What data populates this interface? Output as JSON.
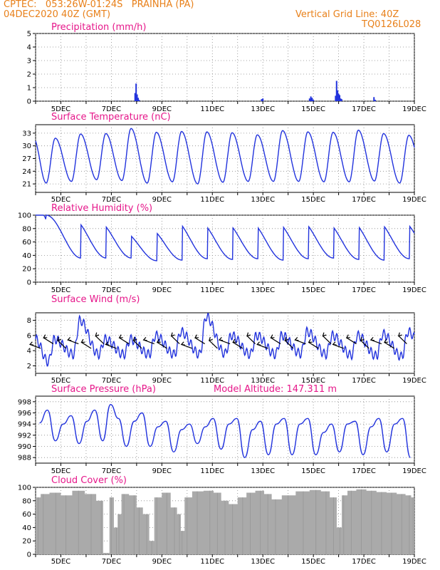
{
  "header": {
    "line1": "CPTEC:   053:26W-01:24S   PRAINHA (PA)",
    "line2": "04DEC2020 40Z (GMT)",
    "right1": "Vertical Grid Line: 40Z",
    "right2": "TQ0126L028"
  },
  "colors": {
    "header": "#e8801a",
    "title": "#e6178a",
    "line": "#2233dd",
    "cloud": "#aaaaaa"
  },
  "chart_data": [
    {
      "type": "bar",
      "title": "Precipitation (mm/h)",
      "x_range": [
        0,
        15
      ],
      "x_ticks": [
        "5DEC",
        "7DEC",
        "9DEC",
        "11DEC",
        "13DEC",
        "15DEC",
        "17DEC",
        "19DEC"
      ],
      "ylim": [
        0,
        5
      ],
      "y_ticks": [
        0,
        1,
        2,
        3,
        4,
        5
      ],
      "grid": true,
      "points": [
        [
          3.94,
          0.6
        ],
        [
          3.98,
          1.3
        ],
        [
          4.02,
          0.5
        ],
        [
          4.06,
          0.25
        ],
        [
          4.1,
          0.1
        ],
        [
          8.95,
          0.15
        ],
        [
          9.0,
          0.2
        ],
        [
          10.85,
          0.2
        ],
        [
          10.9,
          0.35
        ],
        [
          10.95,
          0.25
        ],
        [
          11.0,
          0.1
        ],
        [
          11.88,
          0.4
        ],
        [
          11.92,
          1.5
        ],
        [
          11.96,
          0.8
        ],
        [
          12.0,
          0.55
        ],
        [
          12.04,
          0.45
        ],
        [
          12.08,
          0.2
        ],
        [
          12.12,
          0.15
        ],
        [
          13.4,
          0.3
        ],
        [
          13.45,
          0.1
        ]
      ]
    },
    {
      "type": "line",
      "title": "Surface Temperature (nC)",
      "x_range": [
        0,
        15
      ],
      "x_ticks": [
        "5DEC",
        "7DEC",
        "9DEC",
        "11DEC",
        "13DEC",
        "15DEC",
        "17DEC",
        "19DEC"
      ],
      "ylim": [
        19,
        35
      ],
      "y_ticks": [
        21,
        24,
        27,
        30,
        33
      ],
      "grid": true,
      "min_values": [
        21.2,
        21.6,
        22,
        21.8,
        21.2,
        21.5,
        21,
        21.4,
        21.6,
        21.6,
        21.6,
        21.5,
        21.5,
        21.7,
        21.2,
        21.5
      ],
      "max_values": [
        31.8,
        32.8,
        32.9,
        34.1,
        33.2,
        33.4,
        33.3,
        33.1,
        32.6,
        33.6,
        33.3,
        33.2,
        33.7,
        32.9,
        32.5,
        32.8
      ]
    },
    {
      "type": "line",
      "title": "Relative Humidity (%)",
      "x_range": [
        0,
        15
      ],
      "x_ticks": [
        "5DEC",
        "7DEC",
        "9DEC",
        "11DEC",
        "13DEC",
        "15DEC",
        "17DEC",
        "19DEC"
      ],
      "ylim": [
        0,
        100
      ],
      "y_ticks": [
        0,
        20,
        40,
        60,
        80,
        100
      ],
      "grid": true,
      "min_values": [
        38,
        36,
        36,
        36,
        32,
        33,
        35,
        34,
        35,
        33,
        35,
        36,
        34,
        33,
        35,
        38
      ],
      "max_values": [
        100,
        96,
        92,
        76,
        82,
        95,
        92,
        92,
        92,
        93,
        94,
        92,
        93,
        94,
        94,
        93
      ]
    },
    {
      "type": "line",
      "title": "Surface Wind (m/s)",
      "x_range": [
        0,
        15
      ],
      "x_ticks": [
        "5DEC",
        "7DEC",
        "9DEC",
        "11DEC",
        "13DEC",
        "15DEC",
        "17DEC",
        "19DEC"
      ],
      "ylim": [
        1,
        9
      ],
      "y_ticks": [
        2,
        4,
        6,
        8
      ],
      "grid": true,
      "min_values": [
        2.5,
        3.5,
        3.5,
        3.5,
        3.5,
        3.5,
        3.5,
        3.6,
        3.5,
        3.5,
        3.6,
        3.5,
        3.4,
        3.3,
        3.2,
        3.1
      ],
      "max_values": [
        5.5,
        8,
        5.5,
        5.5,
        6,
        6.5,
        8.5,
        6,
        6,
        6,
        6.5,
        6,
        6,
        6.2,
        6.5,
        6.5
      ]
    },
    {
      "type": "line",
      "title": "Surface Pressure (hPa)",
      "annotation": "Model Altitude: 147.311 m",
      "x_range": [
        0,
        15
      ],
      "x_ticks": [
        "5DEC",
        "7DEC",
        "9DEC",
        "11DEC",
        "13DEC",
        "15DEC",
        "17DEC",
        "19DEC"
      ],
      "ylim": [
        987,
        999
      ],
      "y_ticks": [
        988,
        990,
        992,
        994,
        996,
        998
      ],
      "grid": true,
      "values": [
        994.2,
        996.5,
        991,
        994,
        995.5,
        990.5,
        994.5,
        996.5,
        991,
        997.5,
        995,
        990,
        994.5,
        996,
        990,
        993.5,
        994.5,
        989,
        993,
        994,
        990.5,
        993.5,
        995,
        989.5,
        994,
        995,
        988,
        993,
        994.5,
        988.5,
        994,
        995,
        988.5,
        994,
        995,
        988.5,
        992.5,
        994,
        989,
        994,
        994.5,
        988.5,
        993.5,
        995,
        989,
        994,
        995,
        988
      ]
    },
    {
      "type": "bar",
      "title": "Cloud Cover (%)",
      "x_range": [
        0,
        15
      ],
      "x_ticks": [
        "5DEC",
        "7DEC",
        "9DEC",
        "11DEC",
        "13DEC",
        "15DEC",
        "17DEC",
        "19DEC"
      ],
      "ylim": [
        0,
        100
      ],
      "y_ticks": [
        0,
        20,
        40,
        60,
        80,
        100
      ],
      "grid": true,
      "points": [
        [
          0.1,
          85
        ],
        [
          0.3,
          90
        ],
        [
          0.8,
          92
        ],
        [
          1.2,
          88
        ],
        [
          1.7,
          95
        ],
        [
          2.2,
          90
        ],
        [
          2.6,
          80
        ],
        [
          2.75,
          2
        ],
        [
          2.85,
          2
        ],
        [
          3.0,
          85
        ],
        [
          3.2,
          40
        ],
        [
          3.3,
          60
        ],
        [
          3.5,
          90
        ],
        [
          3.9,
          88
        ],
        [
          4.1,
          70
        ],
        [
          4.4,
          60
        ],
        [
          4.6,
          20
        ],
        [
          4.8,
          85
        ],
        [
          5.2,
          92
        ],
        [
          5.5,
          70
        ],
        [
          5.7,
          60
        ],
        [
          5.8,
          35
        ],
        [
          6.0,
          85
        ],
        [
          6.4,
          94
        ],
        [
          6.9,
          95
        ],
        [
          7.2,
          92
        ],
        [
          7.5,
          80
        ],
        [
          7.8,
          75
        ],
        [
          8.2,
          85
        ],
        [
          8.5,
          92
        ],
        [
          8.9,
          95
        ],
        [
          9.2,
          90
        ],
        [
          9.5,
          82
        ],
        [
          10.0,
          88
        ],
        [
          10.6,
          94
        ],
        [
          11.1,
          96
        ],
        [
          11.5,
          94
        ],
        [
          11.8,
          85
        ],
        [
          12.05,
          40
        ],
        [
          12.2,
          88
        ],
        [
          12.5,
          95
        ],
        [
          12.9,
          97
        ],
        [
          13.3,
          95
        ],
        [
          13.7,
          93
        ],
        [
          14.1,
          92
        ],
        [
          14.5,
          90
        ],
        [
          14.8,
          88
        ],
        [
          14.95,
          85
        ]
      ]
    }
  ]
}
